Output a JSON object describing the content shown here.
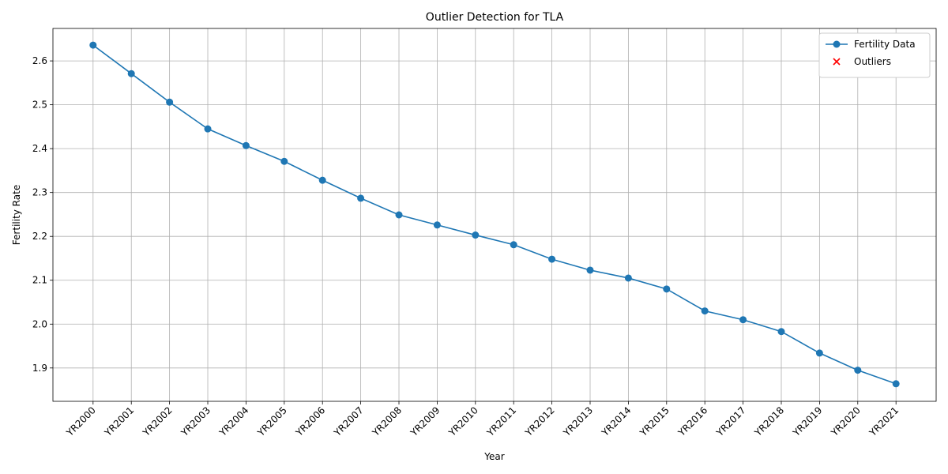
{
  "chart_data": {
    "type": "line",
    "title": "Outlier Detection for TLA",
    "x_label": "Year",
    "y_label": "Fertility Rate",
    "categories": [
      "YR2000",
      "YR2001",
      "YR2002",
      "YR2003",
      "YR2004",
      "YR2005",
      "YR2006",
      "YR2007",
      "YR2008",
      "YR2009",
      "YR2010",
      "YR2011",
      "YR2012",
      "YR2013",
      "YR2014",
      "YR2015",
      "YR2016",
      "YR2017",
      "YR2018",
      "YR2019",
      "YR2020",
      "YR2021"
    ],
    "series": [
      {
        "name": "Fertility Data",
        "color": "#1f77b4",
        "marker": "circle",
        "values": [
          2.636,
          2.571,
          2.506,
          2.445,
          2.407,
          2.371,
          2.328,
          2.287,
          2.249,
          2.226,
          2.203,
          2.181,
          2.148,
          2.123,
          2.105,
          2.08,
          2.03,
          2.01,
          1.983,
          1.934,
          1.895,
          1.864
        ]
      },
      {
        "name": "Outliers",
        "color": "#ff0000",
        "marker": "x",
        "values": [
          null,
          null,
          null,
          null,
          null,
          null,
          null,
          null,
          null,
          null,
          null,
          null,
          null,
          null,
          null,
          null,
          null,
          null,
          null,
          null,
          null,
          null
        ]
      }
    ],
    "ylim": [
      1.824,
      2.674
    ],
    "yticks": [
      1.9,
      {
        "value": 2,
        "label": "2.0"
      },
      2.1,
      2.2,
      2.3,
      2.4,
      2.5,
      2.6
    ],
    "grid": true,
    "legend": "upper right"
  }
}
